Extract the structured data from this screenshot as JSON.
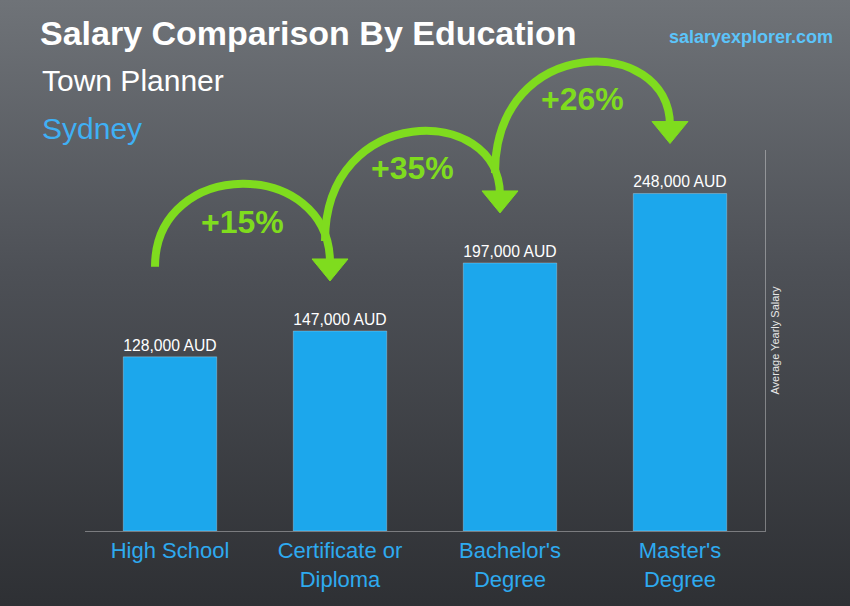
{
  "chart_data": {
    "type": "bar",
    "title": "Salary Comparison By Education",
    "subtitle": "Town Planner",
    "location": "Sydney",
    "source": "salaryexplorer.com",
    "ylabel": "Average Yearly Salary",
    "categories": [
      "High School",
      "Certificate or Diploma",
      "Bachelor's Degree",
      "Master's Degree"
    ],
    "values": [
      128000,
      147000,
      197000,
      248000
    ],
    "value_labels": [
      "128,000 AUD",
      "147,000 AUD",
      "197,000 AUD",
      "248,000 AUD"
    ],
    "color": "#1ca7ec",
    "ylim": [
      0,
      280000
    ],
    "grid": false,
    "data_labels": true,
    "tick_labels": "x",
    "annotations": [
      {
        "text": "+15%",
        "from": "High School",
        "to": "Certificate or Diploma"
      },
      {
        "text": "+35%",
        "from": "Certificate or Diploma",
        "to": "Bachelor's Degree"
      },
      {
        "text": "+26%",
        "from": "Bachelor's Degree",
        "to": "Master's Degree"
      }
    ]
  }
}
